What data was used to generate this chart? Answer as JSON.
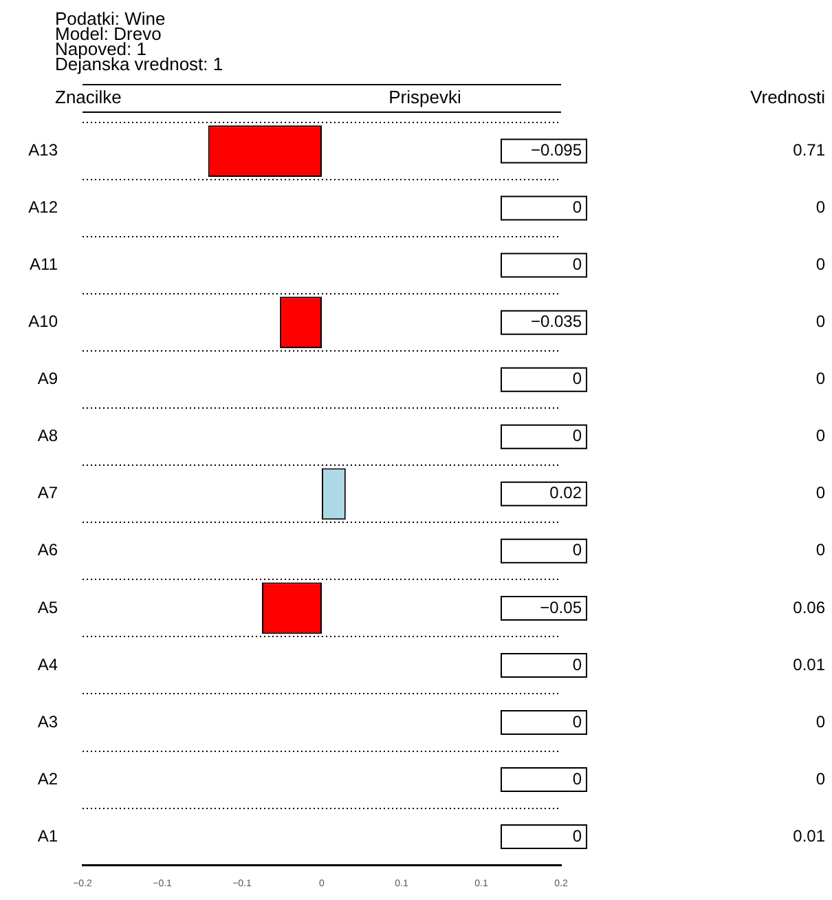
{
  "chart_data": {
    "type": "bar",
    "orientation": "horizontal",
    "title": "Podatki:  Wine",
    "subtitle": "Model:  Drevo",
    "ylabel": "Znacilke",
    "xlabel": "Prispevki",
    "categories": [
      "A13",
      "A12",
      "A11",
      "A10",
      "A9",
      "A8",
      "A7",
      "A6",
      "A5",
      "A4",
      "A3",
      "A2",
      "A1"
    ],
    "values": [
      -0.095,
      0,
      0,
      -0.035,
      0,
      0,
      0.02,
      0,
      -0.05,
      0,
      0,
      0,
      0
    ],
    "colors": [
      "#ff0000",
      "#000000",
      "#000000",
      "#ff0000",
      "#000000",
      "#000000",
      "#add8e6",
      "#000000",
      "#ff0000",
      "#000000",
      "#000000",
      "#000000",
      "#000000"
    ],
    "value_labels": [
      "−0.095",
      "0",
      "0",
      "−0.035",
      "0",
      "0",
      "0.02",
      "0",
      "−0.05",
      "0",
      "0",
      "0",
      "0"
    ],
    "xlim": [
      -0.2,
      0.2
    ],
    "xticks": [
      {
        "value": -0.2,
        "label": "−0.2"
      },
      {
        "value": -0.1333,
        "label": "−0.1"
      },
      {
        "value": -0.0667,
        "label": "−0.1"
      },
      {
        "value": 0,
        "label": "0"
      },
      {
        "value": 0.0667,
        "label": "0.1"
      },
      {
        "value": 0.1333,
        "label": "0.1"
      },
      {
        "value": 0.2,
        "label": "0.2"
      }
    ],
    "grid": "y",
    "legend": false,
    "annotations": [
      "Napoved:  1",
      "Dejanska vrednost:  1",
      "Vrednosti",
      "0.71",
      "0",
      "0",
      "0",
      "0",
      "0",
      "0",
      "0",
      "0.06",
      "0.01",
      "0",
      "0",
      "0.01"
    ]
  }
}
